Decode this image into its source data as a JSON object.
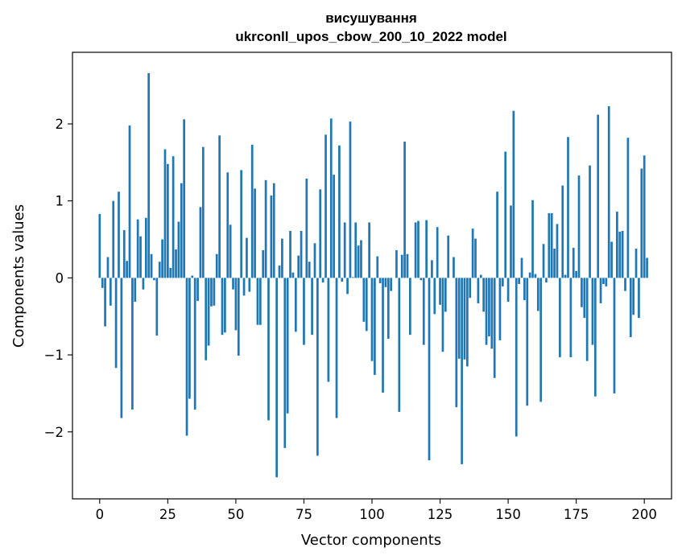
{
  "chart_data": {
    "type": "bar",
    "title": "висушування",
    "subtitle": "ukrconll_upos_cbow_200_10_2022 model",
    "xlabel": "Vector components",
    "ylabel": "Components values",
    "xlim": [
      -10,
      210
    ],
    "ylim": [
      -2.87,
      2.93
    ],
    "xticks": [
      0,
      25,
      50,
      75,
      100,
      125,
      150,
      175,
      200
    ],
    "yticks": [
      -2,
      -1,
      0,
      1,
      2
    ],
    "xtick_labels": [
      "0",
      "25",
      "50",
      "75",
      "100",
      "125",
      "150",
      "175",
      "200"
    ],
    "ytick_labels": [
      "−2",
      "−1",
      "0",
      "1",
      "2"
    ],
    "bar_color": "#1f77b4",
    "grid": false,
    "values": [
      0.83,
      -0.13,
      -0.63,
      0.27,
      -0.36,
      1.0,
      -1.17,
      1.12,
      -1.82,
      0.62,
      0.22,
      1.98,
      -1.71,
      -0.31,
      0.76,
      0.54,
      -0.15,
      0.78,
      2.66,
      0.31,
      -0.03,
      -0.75,
      0.21,
      0.5,
      1.67,
      1.48,
      0.13,
      1.58,
      0.37,
      0.73,
      1.23,
      2.06,
      -2.05,
      -1.57,
      0.03,
      -1.71,
      -0.3,
      0.92,
      1.7,
      -1.07,
      -0.88,
      -0.37,
      -0.36,
      0.31,
      1.85,
      -0.74,
      -0.71,
      1.37,
      0.69,
      -0.15,
      -0.68,
      -1.01,
      1.4,
      -0.23,
      0.52,
      -0.18,
      1.73,
      1.16,
      -0.61,
      -0.61,
      0.36,
      1.27,
      -1.85,
      1.07,
      1.23,
      -2.59,
      0.16,
      0.51,
      -2.21,
      -1.76,
      0.61,
      0.07,
      -0.7,
      0.29,
      0.61,
      -0.87,
      1.29,
      0.21,
      -0.74,
      0.45,
      -2.31,
      1.15,
      -0.06,
      1.86,
      -1.35,
      2.07,
      1.34,
      -1.82,
      1.72,
      -0.05,
      0.72,
      -0.21,
      2.03,
      0.01,
      0.72,
      0.42,
      0.49,
      -0.57,
      -0.69,
      0.72,
      -1.08,
      -1.26,
      0.28,
      -0.07,
      -1.49,
      -0.12,
      -0.79,
      -0.17,
      0.0,
      0.36,
      -1.74,
      0.3,
      1.77,
      0.31,
      -0.74,
      0.0,
      0.72,
      0.74,
      -0.03,
      -0.87,
      0.75,
      -2.37,
      0.23,
      -0.47,
      0.66,
      -0.35,
      -0.96,
      -0.44,
      0.55,
      0.0,
      0.27,
      -1.68,
      -1.05,
      -2.42,
      -1.06,
      -1.15,
      -0.26,
      0.64,
      0.51,
      -0.33,
      0.04,
      -0.44,
      -0.87,
      -0.76,
      -0.92,
      -1.3,
      1.12,
      -0.81,
      -0.11,
      1.64,
      -0.31,
      0.94,
      2.17,
      -2.06,
      -0.08,
      0.26,
      -0.29,
      -1.66,
      0.07,
      1.01,
      0.05,
      -0.43,
      -1.61,
      0.44,
      -0.06,
      0.84,
      0.84,
      0.38,
      0.7,
      -1.03,
      1.2,
      0.04,
      1.83,
      -1.03,
      0.39,
      0.09,
      1.33,
      -0.38,
      -0.52,
      -1.08,
      1.46,
      -0.87,
      -1.54,
      2.12,
      -0.33,
      -0.08,
      -0.11,
      2.23,
      0.47,
      -1.5,
      0.86,
      0.6,
      0.61,
      -0.17,
      1.82,
      -0.77,
      -0.48,
      0.38,
      -0.52,
      1.42,
      1.59,
      0.26
    ]
  }
}
